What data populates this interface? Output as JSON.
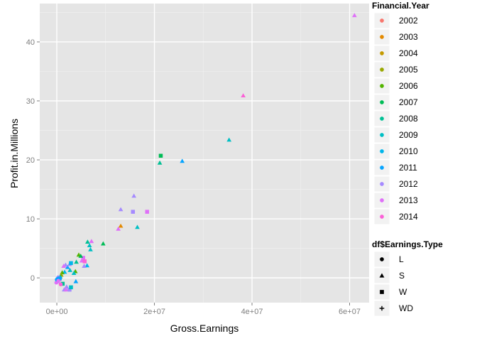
{
  "chart_data": {
    "type": "scatter",
    "xlabel": "Gross.Earnings",
    "ylabel": "Profit.in.Millions",
    "xlim": [
      -3500000,
      64000000
    ],
    "ylim": [
      -4.2,
      46.5
    ],
    "x_ticks": [
      {
        "value": 0,
        "label": "0e+00"
      },
      {
        "value": 20000000,
        "label": "2e+07"
      },
      {
        "value": 40000000,
        "label": "4e+07"
      },
      {
        "value": 60000000,
        "label": "6e+07"
      }
    ],
    "y_ticks": [
      {
        "value": 0,
        "label": "0"
      },
      {
        "value": 10,
        "label": "10"
      },
      {
        "value": 20,
        "label": "20"
      },
      {
        "value": 30,
        "label": "30"
      },
      {
        "value": 40,
        "label": "40"
      }
    ],
    "grid": true,
    "background": "#e5e5e5",
    "legend_position": "right",
    "color_legend": {
      "title": "Financial.Year",
      "items": [
        {
          "label": "2002",
          "color": "#F8766D"
        },
        {
          "label": "2003",
          "color": "#E38900"
        },
        {
          "label": "2004",
          "color": "#C49A00"
        },
        {
          "label": "2005",
          "color": "#99A800"
        },
        {
          "label": "2006",
          "color": "#53B400"
        },
        {
          "label": "2007",
          "color": "#00BC56"
        },
        {
          "label": "2008",
          "color": "#00C094"
        },
        {
          "label": "2009",
          "color": "#00BFC4"
        },
        {
          "label": "2010",
          "color": "#00B6EB"
        },
        {
          "label": "2011",
          "color": "#06A4FF"
        },
        {
          "label": "2012",
          "color": "#A58AFF"
        },
        {
          "label": "2013",
          "color": "#DF70F8"
        },
        {
          "label": "2014",
          "color": "#FB61D7"
        }
      ]
    },
    "shape_legend": {
      "title": "df$Earnings.Type",
      "items": [
        {
          "label": "L",
          "shape": "circle"
        },
        {
          "label": "S",
          "shape": "triangle"
        },
        {
          "label": "W",
          "shape": "square"
        },
        {
          "label": "WD",
          "shape": "plus"
        }
      ]
    },
    "points": [
      {
        "x": 61000000,
        "y": 44.5,
        "year": "2013",
        "type": "S"
      },
      {
        "x": 38200000,
        "y": 30.9,
        "year": "2014",
        "type": "S"
      },
      {
        "x": 35300000,
        "y": 23.4,
        "year": "2009",
        "type": "S"
      },
      {
        "x": 25700000,
        "y": 19.8,
        "year": "2011",
        "type": "S"
      },
      {
        "x": 21300000,
        "y": 20.7,
        "year": "2007",
        "type": "W"
      },
      {
        "x": 21100000,
        "y": 19.5,
        "year": "2008",
        "type": "S"
      },
      {
        "x": 15800000,
        "y": 13.9,
        "year": "2012",
        "type": "S"
      },
      {
        "x": 13100000,
        "y": 11.6,
        "year": "2012",
        "type": "S"
      },
      {
        "x": 15600000,
        "y": 11.2,
        "year": "2012",
        "type": "W"
      },
      {
        "x": 18500000,
        "y": 11.2,
        "year": "2013",
        "type": "W"
      },
      {
        "x": 13100000,
        "y": 8.8,
        "year": "2003",
        "type": "S"
      },
      {
        "x": 12600000,
        "y": 8.3,
        "year": "2013",
        "type": "S"
      },
      {
        "x": 16500000,
        "y": 8.6,
        "year": "2009",
        "type": "S"
      },
      {
        "x": 9500000,
        "y": 5.8,
        "year": "2007",
        "type": "S"
      },
      {
        "x": 6300000,
        "y": 6.1,
        "year": "2008",
        "type": "S"
      },
      {
        "x": 6700000,
        "y": 5.5,
        "year": "2009",
        "type": "S"
      },
      {
        "x": 6900000,
        "y": 4.8,
        "year": "2009",
        "type": "S"
      },
      {
        "x": 7100000,
        "y": 6.2,
        "year": "2013",
        "type": "S"
      },
      {
        "x": 5400000,
        "y": 3.4,
        "year": "2013",
        "type": "W"
      },
      {
        "x": 5100000,
        "y": 2.9,
        "year": "2013",
        "type": "S"
      },
      {
        "x": 4500000,
        "y": 3.9,
        "year": "2006",
        "type": "S"
      },
      {
        "x": 4900000,
        "y": 3.7,
        "year": "2007",
        "type": "S"
      },
      {
        "x": 5700000,
        "y": 2.8,
        "year": "2014",
        "type": "W"
      },
      {
        "x": 6200000,
        "y": 2.1,
        "year": "2010",
        "type": "S"
      },
      {
        "x": 5600000,
        "y": 2.0,
        "year": "2012",
        "type": "S"
      },
      {
        "x": 4000000,
        "y": 2.7,
        "year": "2008",
        "type": "S"
      },
      {
        "x": 3800000,
        "y": 1.1,
        "year": "2006",
        "type": "S"
      },
      {
        "x": 3500000,
        "y": 0.8,
        "year": "2009",
        "type": "S"
      },
      {
        "x": 2600000,
        "y": 2.3,
        "year": "2012",
        "type": "S"
      },
      {
        "x": 2900000,
        "y": 2.5,
        "year": "2010",
        "type": "W"
      },
      {
        "x": 2200000,
        "y": 1.8,
        "year": "2011",
        "type": "S"
      },
      {
        "x": 1800000,
        "y": 2.2,
        "year": "2012",
        "type": "S"
      },
      {
        "x": 1400000,
        "y": 2.0,
        "year": "2013",
        "type": "S"
      },
      {
        "x": 2700000,
        "y": 1.3,
        "year": "2009",
        "type": "S"
      },
      {
        "x": 1600000,
        "y": 1.0,
        "year": "2010",
        "type": "S"
      },
      {
        "x": 1100000,
        "y": 0.9,
        "year": "2006",
        "type": "S"
      },
      {
        "x": 900000,
        "y": 0.5,
        "year": "2005",
        "type": "S"
      },
      {
        "x": 700000,
        "y": 0.2,
        "year": "2008",
        "type": "S"
      },
      {
        "x": 300000,
        "y": 0.1,
        "year": "2012",
        "type": "L"
      },
      {
        "x": 100000,
        "y": -0.2,
        "year": "2011",
        "type": "L"
      },
      {
        "x": 200000,
        "y": -0.6,
        "year": "2012",
        "type": "S"
      },
      {
        "x": -100000,
        "y": -0.8,
        "year": "2013",
        "type": "L"
      },
      {
        "x": 400000,
        "y": -0.3,
        "year": "2014",
        "type": "S"
      },
      {
        "x": 600000,
        "y": -0.1,
        "year": "2011",
        "type": "W"
      },
      {
        "x": 1200000,
        "y": -1.0,
        "year": "2008",
        "type": "W"
      },
      {
        "x": 2000000,
        "y": -1.5,
        "year": "2012",
        "type": "S"
      },
      {
        "x": 1500000,
        "y": -2.0,
        "year": "2012",
        "type": "S"
      },
      {
        "x": 1900000,
        "y": -2.0,
        "year": "2013",
        "type": "S"
      },
      {
        "x": 2600000,
        "y": -2.0,
        "year": "2012",
        "type": "W"
      },
      {
        "x": 2900000,
        "y": -1.6,
        "year": "2009",
        "type": "W"
      },
      {
        "x": 3900000,
        "y": -0.6,
        "year": "2011",
        "type": "S"
      },
      {
        "x": 800000,
        "y": -1.1,
        "year": "2014",
        "type": "L"
      },
      {
        "x": 0,
        "y": -0.3,
        "year": "2011",
        "type": "L"
      },
      {
        "x": 300000,
        "y": -0.5,
        "year": "2013",
        "type": "L"
      }
    ]
  }
}
